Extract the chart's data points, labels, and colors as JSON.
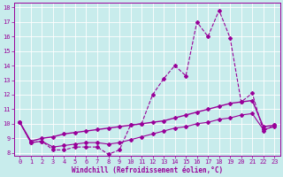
{
  "xlabel": "Windchill (Refroidissement éolien,°C)",
  "background_color": "#c8ecec",
  "line_color": "#990099",
  "xlim": [
    -0.5,
    23.5
  ],
  "ylim": [
    7.8,
    18.3
  ],
  "yticks": [
    8,
    9,
    10,
    11,
    12,
    13,
    14,
    15,
    16,
    17,
    18
  ],
  "xticks": [
    0,
    1,
    2,
    3,
    4,
    5,
    6,
    7,
    8,
    9,
    10,
    11,
    12,
    13,
    14,
    15,
    16,
    17,
    18,
    19,
    20,
    21,
    22,
    23
  ],
  "line1_x": [
    0,
    1,
    2,
    3,
    4,
    5,
    6,
    7,
    8,
    9,
    10,
    11,
    12,
    13,
    14,
    15,
    16,
    17,
    18,
    19,
    20,
    21,
    22,
    23
  ],
  "line1_y": [
    10.1,
    8.7,
    8.8,
    8.2,
    8.2,
    8.4,
    8.4,
    8.4,
    7.9,
    8.2,
    9.9,
    10.0,
    12.0,
    13.1,
    14.0,
    13.3,
    17.0,
    16.0,
    17.8,
    15.9,
    11.5,
    12.1,
    9.5,
    9.9
  ],
  "line2_x": [
    0,
    1,
    2,
    3,
    4,
    5,
    6,
    7,
    8,
    9,
    10,
    11,
    12,
    13,
    14,
    15,
    16,
    17,
    18,
    19,
    20,
    21,
    22,
    23
  ],
  "line2_y": [
    10.1,
    8.8,
    9.0,
    9.1,
    9.3,
    9.4,
    9.5,
    9.6,
    9.7,
    9.8,
    9.9,
    10.0,
    10.1,
    10.2,
    10.4,
    10.6,
    10.8,
    11.0,
    11.2,
    11.4,
    11.5,
    11.6,
    9.8,
    9.9
  ],
  "line3_x": [
    0,
    1,
    2,
    3,
    4,
    5,
    6,
    7,
    8,
    9,
    10,
    11,
    12,
    13,
    14,
    15,
    16,
    17,
    18,
    19,
    20,
    21,
    22,
    23
  ],
  "line3_y": [
    10.1,
    8.7,
    8.8,
    8.4,
    8.5,
    8.6,
    8.7,
    8.7,
    8.6,
    8.7,
    8.9,
    9.1,
    9.3,
    9.5,
    9.7,
    9.8,
    10.0,
    10.1,
    10.3,
    10.4,
    10.6,
    10.7,
    9.6,
    9.8
  ]
}
